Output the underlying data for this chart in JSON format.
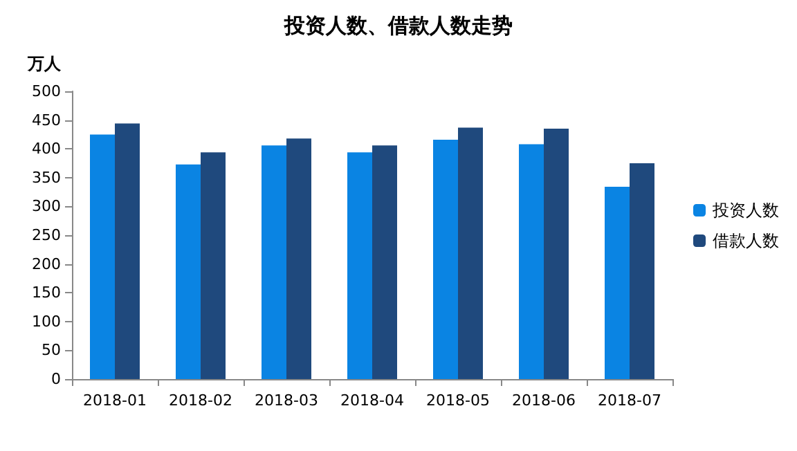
{
  "chart_data": {
    "type": "bar",
    "title": "投资人数、借款人数走势",
    "ylabel": "万人",
    "categories": [
      "2018-01",
      "2018-02",
      "2018-03",
      "2018-04",
      "2018-05",
      "2018-06",
      "2018-07"
    ],
    "series": [
      {
        "name": "投资人数",
        "color": "#0a84e3",
        "values": [
          425,
          373,
          406,
          394,
          416,
          408,
          334
        ]
      },
      {
        "name": "借款人数",
        "color": "#1f497d",
        "values": [
          444,
          394,
          418,
          406,
          437,
          435,
          375
        ]
      }
    ],
    "ylim": [
      0,
      500
    ],
    "yticks": [
      0,
      50,
      100,
      150,
      200,
      250,
      300,
      350,
      400,
      450,
      500
    ],
    "grid": false,
    "legend": "right"
  }
}
